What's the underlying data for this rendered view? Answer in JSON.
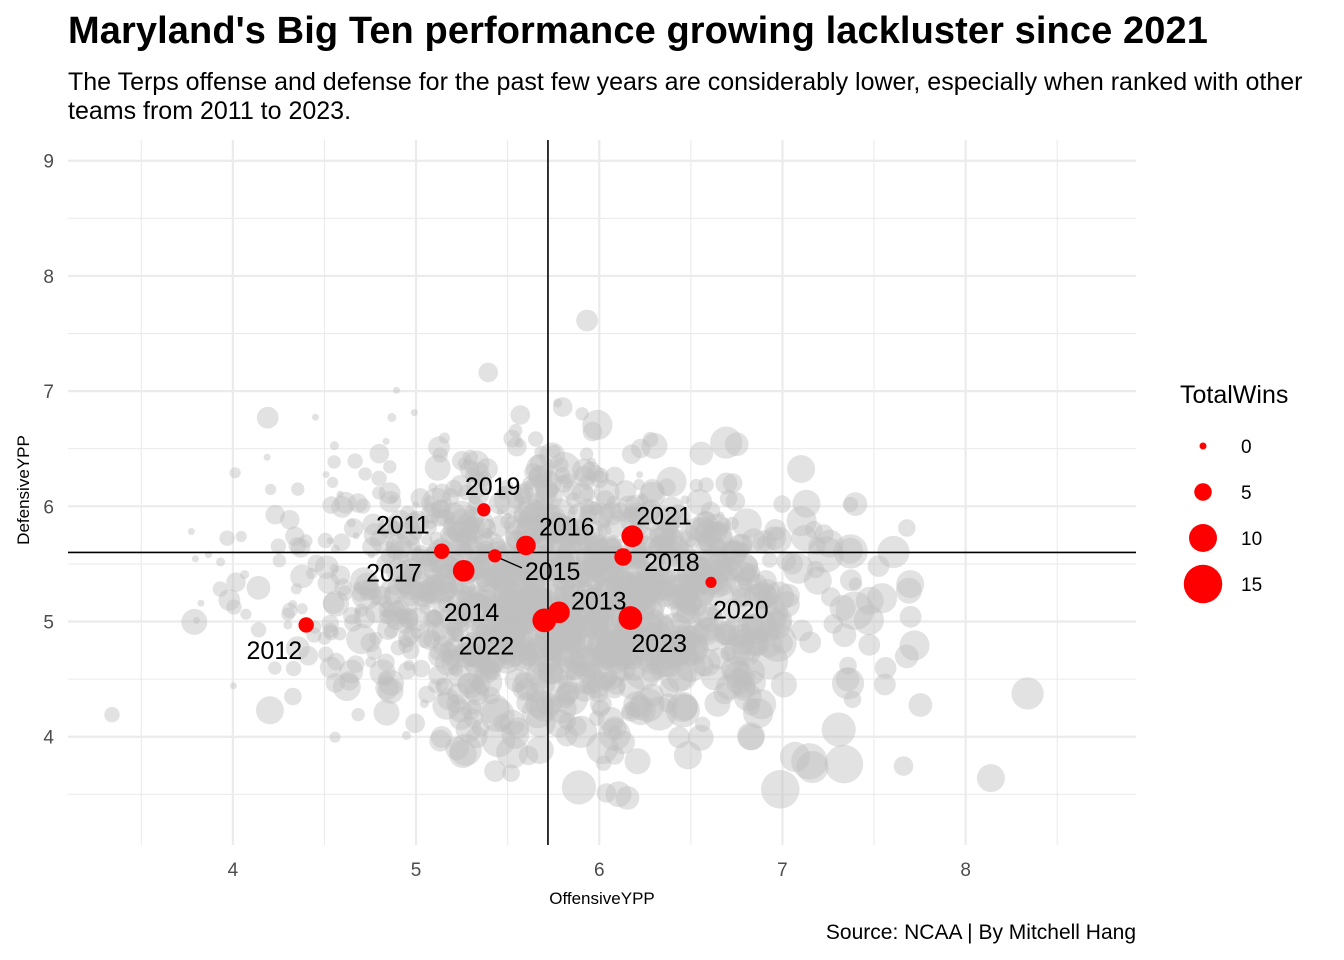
{
  "chart_data": {
    "type": "scatter",
    "title": "Maryland's Big Ten performance growing lackluster since 2021",
    "subtitle": "The Terps offense and defense for the past few years are considerably lower, especially when ranked with other teams from 2011 to 2023.",
    "caption": "Source: NCAA | By Mitchell Hang",
    "xlabel": "OffensiveYPP",
    "ylabel": "DefensiveYPP",
    "xlim": [
      3.1,
      8.93
    ],
    "ylim": [
      3.06,
      9.18
    ],
    "xticks": [
      "4",
      "5",
      "6",
      "7",
      "8"
    ],
    "yticks": [
      "4",
      "5",
      "6",
      "7",
      "8",
      "9"
    ],
    "reference_lines": {
      "vertical_x": 5.72,
      "horizontal_y": 5.6
    },
    "grid": true,
    "legend": {
      "title": "TotalWins",
      "position": "right",
      "entries": [
        {
          "label": "0",
          "value": 0
        },
        {
          "label": "5",
          "value": 5
        },
        {
          "label": "10",
          "value": 10
        },
        {
          "label": "15",
          "value": 15
        }
      ]
    },
    "colors": {
      "highlight": "#ff0000",
      "background_points": "#bebebe"
    },
    "series": [
      {
        "name": "Maryland",
        "points": [
          {
            "label": "2011",
            "x": 5.14,
            "y": 5.61,
            "wins": 2
          },
          {
            "label": "2012",
            "x": 4.4,
            "y": 4.97,
            "wins": 4
          },
          {
            "label": "2013",
            "x": 5.78,
            "y": 5.08,
            "wins": 7
          },
          {
            "label": "2014",
            "x": 5.26,
            "y": 5.44,
            "wins": 7
          },
          {
            "label": "2015",
            "x": 5.43,
            "y": 5.57,
            "wins": 3
          },
          {
            "label": "2016",
            "x": 5.6,
            "y": 5.66,
            "wins": 6
          },
          {
            "label": "2017",
            "x": 5.14,
            "y": 5.61,
            "wins": 4
          },
          {
            "label": "2018",
            "x": 6.13,
            "y": 5.56,
            "wins": 5
          },
          {
            "label": "2019",
            "x": 5.37,
            "y": 5.97,
            "wins": 3
          },
          {
            "label": "2020",
            "x": 6.61,
            "y": 5.34,
            "wins": 2
          },
          {
            "label": "2021",
            "x": 6.18,
            "y": 5.74,
            "wins": 7
          },
          {
            "label": "2022",
            "x": 5.7,
            "y": 5.01,
            "wins": 8
          },
          {
            "label": "2023",
            "x": 6.17,
            "y": 5.03,
            "wins": 8
          }
        ]
      }
    ]
  }
}
